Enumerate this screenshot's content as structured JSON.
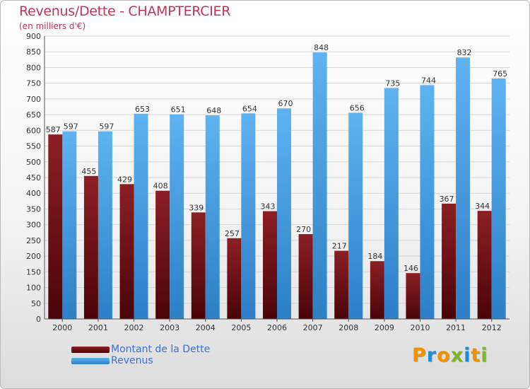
{
  "title": "Revenus/Dette - CHAMPTERCIER",
  "subtitle": "(en milliers d'€)",
  "logo": {
    "text": "Proxiti",
    "letter_colors": [
      "#f29100",
      "#1b8fd1",
      "#f29100",
      "#7ab829",
      "#1b8fd1",
      "#f29100",
      "#7ab829"
    ]
  },
  "chart_data": {
    "type": "bar",
    "categories": [
      "2000",
      "2001",
      "2002",
      "2003",
      "2004",
      "2005",
      "2006",
      "2007",
      "2008",
      "2009",
      "2010",
      "2011",
      "2012"
    ],
    "series": [
      {
        "name": "Montant de la Dette",
        "color": "#6e0f14",
        "values": [
          587,
          455,
          429,
          408,
          339,
          257,
          343,
          270,
          217,
          184,
          146,
          367,
          344
        ]
      },
      {
        "name": "Revenus",
        "color": "#4aa3e6",
        "values": [
          597,
          597,
          653,
          651,
          648,
          654,
          670,
          848,
          656,
          735,
          744,
          832,
          765
        ]
      }
    ],
    "ylim": [
      0,
      900
    ],
    "yticks": [
      0,
      50,
      100,
      150,
      200,
      250,
      300,
      350,
      400,
      450,
      500,
      550,
      600,
      650,
      700,
      750,
      800,
      850,
      900
    ],
    "grid": true,
    "legend": "bottom-left"
  }
}
